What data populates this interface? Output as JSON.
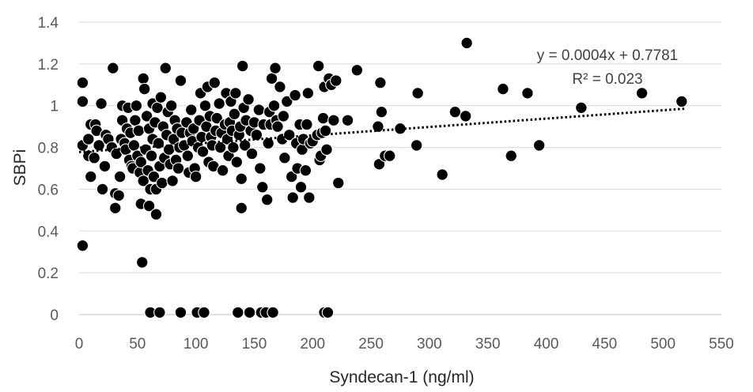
{
  "chart_data": {
    "type": "scatter",
    "xlabel": "Syndecan-1 (ng/ml)",
    "ylabel": "SBPi",
    "xlim": [
      0,
      550
    ],
    "ylim": [
      0,
      1.4
    ],
    "xticks": [
      "0",
      "50",
      "100",
      "150",
      "200",
      "250",
      "300",
      "350",
      "400",
      "450",
      "500",
      "550"
    ],
    "yticks": [
      "0",
      "0.2",
      "0.4",
      "0.6",
      "0.8",
      "1",
      "1.2",
      "1.4"
    ],
    "grid": "horizontal",
    "legend": "none",
    "colors": {
      "point": "#000000",
      "grid": "#d9d9d9",
      "trendline": "#000000"
    },
    "trendline": {
      "type": "linear",
      "slope": 0.0004,
      "intercept": 0.7781,
      "style": "dotted",
      "x_range": [
        0,
        520
      ]
    },
    "equation_label": "y = 0.0004x + 0.7781",
    "r2_label": "R² = 0.023",
    "points": [
      [
        3,
        0.33
      ],
      [
        3,
        1.11
      ],
      [
        3,
        1.02
      ],
      [
        3,
        0.81
      ],
      [
        8,
        0.84
      ],
      [
        8,
        0.76
      ],
      [
        10,
        0.66
      ],
      [
        10,
        0.91
      ],
      [
        13,
        0.75
      ],
      [
        14,
        0.91
      ],
      [
        15,
        0.88
      ],
      [
        17,
        0.81
      ],
      [
        19,
        1.01
      ],
      [
        20,
        0.6
      ],
      [
        22,
        0.71
      ],
      [
        23,
        0.86
      ],
      [
        25,
        0.84
      ],
      [
        28,
        0.8
      ],
      [
        29,
        1.18
      ],
      [
        31,
        0.51
      ],
      [
        31,
        0.58
      ],
      [
        32,
        0.77
      ],
      [
        34,
        0.57
      ],
      [
        35,
        0.66
      ],
      [
        36,
        0.84
      ],
      [
        37,
        1.0
      ],
      [
        37,
        0.93
      ],
      [
        39,
        0.82
      ],
      [
        40,
        0.79
      ],
      [
        41,
        0.89
      ],
      [
        42,
        0.99
      ],
      [
        43,
        0.74
      ],
      [
        44,
        0.87
      ],
      [
        45,
        0.71
      ],
      [
        46,
        0.7
      ],
      [
        47,
        0.81
      ],
      [
        48,
        0.93
      ],
      [
        49,
        1.0
      ],
      [
        50,
        0.76
      ],
      [
        51,
        0.88
      ],
      [
        52,
        0.68
      ],
      [
        53,
        0.73
      ],
      [
        53,
        0.53
      ],
      [
        54,
        0.25
      ],
      [
        55,
        1.13
      ],
      [
        55,
        0.64
      ],
      [
        56,
        1.08
      ],
      [
        57,
        0.79
      ],
      [
        58,
        0.95
      ],
      [
        59,
        0.69
      ],
      [
        60,
        0.52
      ],
      [
        60,
        0.89
      ],
      [
        61,
        0.6
      ],
      [
        61,
        0.01
      ],
      [
        62,
        0.76
      ],
      [
        63,
        1.01
      ],
      [
        63,
        0.84
      ],
      [
        64,
        0.66
      ],
      [
        65,
        0.92
      ],
      [
        66,
        0.48
      ],
      [
        66,
        0.6
      ],
      [
        67,
        0.99
      ],
      [
        68,
        0.82
      ],
      [
        69,
        0.71
      ],
      [
        69,
        0.01
      ],
      [
        70,
        1.04
      ],
      [
        71,
        0.63
      ],
      [
        72,
        0.9
      ],
      [
        73,
        0.75
      ],
      [
        74,
        1.18
      ],
      [
        75,
        0.86
      ],
      [
        76,
        0.97
      ],
      [
        77,
        0.79
      ],
      [
        78,
        0.72
      ],
      [
        79,
        1.0
      ],
      [
        80,
        0.64
      ],
      [
        81,
        0.84
      ],
      [
        82,
        0.93
      ],
      [
        83,
        0.74
      ],
      [
        84,
        0.89
      ],
      [
        85,
        0.7
      ],
      [
        86,
        0.8
      ],
      [
        87,
        1.12
      ],
      [
        87,
        0.01
      ],
      [
        88,
        0.87
      ],
      [
        90,
        0.81
      ],
      [
        92,
        0.92
      ],
      [
        93,
        0.76
      ],
      [
        94,
        0.68
      ],
      [
        95,
        0.87
      ],
      [
        96,
        0.98
      ],
      [
        97,
        0.83
      ],
      [
        98,
        0.89
      ],
      [
        99,
        0.7
      ],
      [
        100,
        0.66
      ],
      [
        101,
        0.01
      ],
      [
        102,
        0.8
      ],
      [
        103,
        0.93
      ],
      [
        104,
        1.06
      ],
      [
        105,
        0.85
      ],
      [
        106,
        0.78
      ],
      [
        107,
        0.01
      ],
      [
        108,
        1.0
      ],
      [
        109,
        0.9
      ],
      [
        110,
        1.09
      ],
      [
        111,
        0.73
      ],
      [
        112,
        0.95
      ],
      [
        113,
        0.85
      ],
      [
        114,
        0.81
      ],
      [
        115,
        0.71
      ],
      [
        116,
        1.11
      ],
      [
        117,
        0.88
      ],
      [
        118,
        0.94
      ],
      [
        120,
        1.01
      ],
      [
        121,
        0.8
      ],
      [
        122,
        0.87
      ],
      [
        123,
        0.69
      ],
      [
        125,
        0.91
      ],
      [
        126,
        1.06
      ],
      [
        127,
        0.84
      ],
      [
        128,
        0.76
      ],
      [
        129,
        0.92
      ],
      [
        130,
        1.02
      ],
      [
        131,
        0.88
      ],
      [
        132,
        0.8
      ],
      [
        133,
        0.96
      ],
      [
        134,
        1.06
      ],
      [
        135,
        0.73
      ],
      [
        136,
        0.01
      ],
      [
        137,
        0.86
      ],
      [
        138,
        0.9
      ],
      [
        139,
        0.51
      ],
      [
        139,
        0.65
      ],
      [
        140,
        1.19
      ],
      [
        141,
        0.99
      ],
      [
        142,
        0.81
      ],
      [
        143,
        0.93
      ],
      [
        145,
        1.03
      ],
      [
        146,
        0.01
      ],
      [
        147,
        0.88
      ],
      [
        148,
        0.77
      ],
      [
        150,
        0.92
      ],
      [
        152,
        0.86
      ],
      [
        154,
        0.98
      ],
      [
        155,
        0.7
      ],
      [
        156,
        0.01
      ],
      [
        157,
        0.61
      ],
      [
        158,
        0.91
      ],
      [
        160,
        0.01
      ],
      [
        161,
        0.55
      ],
      [
        162,
        0.82
      ],
      [
        163,
        0.97
      ],
      [
        164,
        0.91
      ],
      [
        165,
        1.13
      ],
      [
        166,
        0.01
      ],
      [
        167,
        1.0
      ],
      [
        168,
        1.18
      ],
      [
        169,
        0.93
      ],
      [
        170,
        0.9
      ],
      [
        172,
        1.09
      ],
      [
        174,
        0.84
      ],
      [
        175,
        0.95
      ],
      [
        176,
        0.75
      ],
      [
        178,
        1.02
      ],
      [
        180,
        0.86
      ],
      [
        182,
        0.66
      ],
      [
        183,
        0.56
      ],
      [
        185,
        1.05
      ],
      [
        186,
        0.82
      ],
      [
        187,
        0.7
      ],
      [
        189,
        0.91
      ],
      [
        190,
        0.61
      ],
      [
        191,
        0.79
      ],
      [
        192,
        0.84
      ],
      [
        194,
        0.69
      ],
      [
        195,
        0.91
      ],
      [
        196,
        1.06
      ],
      [
        197,
        0.56
      ],
      [
        198,
        0.82
      ],
      [
        200,
        0.83
      ],
      [
        204,
        0.86
      ],
      [
        205,
        1.19
      ],
      [
        206,
        0.74
      ],
      [
        207,
        0.76
      ],
      [
        208,
        0.87
      ],
      [
        209,
        0.94
      ],
      [
        210,
        1.09
      ],
      [
        210,
        0.01
      ],
      [
        211,
        0.88
      ],
      [
        212,
        0.79
      ],
      [
        213,
        0.01
      ],
      [
        214,
        1.13
      ],
      [
        216,
        1.1
      ],
      [
        218,
        0.93
      ],
      [
        220,
        1.12
      ],
      [
        222,
        0.63
      ],
      [
        230,
        0.93
      ],
      [
        238,
        1.17
      ],
      [
        256,
        0.9
      ],
      [
        257,
        0.72
      ],
      [
        258,
        1.11
      ],
      [
        259,
        0.97
      ],
      [
        262,
        0.76
      ],
      [
        266,
        0.76
      ],
      [
        275,
        0.89
      ],
      [
        289,
        0.81
      ],
      [
        290,
        1.06
      ],
      [
        311,
        0.67
      ],
      [
        322,
        0.97
      ],
      [
        331,
        0.95
      ],
      [
        332,
        1.3
      ],
      [
        363,
        1.08
      ],
      [
        370,
        0.76
      ],
      [
        384,
        1.06
      ],
      [
        394,
        0.81
      ],
      [
        430,
        0.99
      ],
      [
        482,
        1.06
      ],
      [
        516,
        1.02
      ]
    ]
  }
}
